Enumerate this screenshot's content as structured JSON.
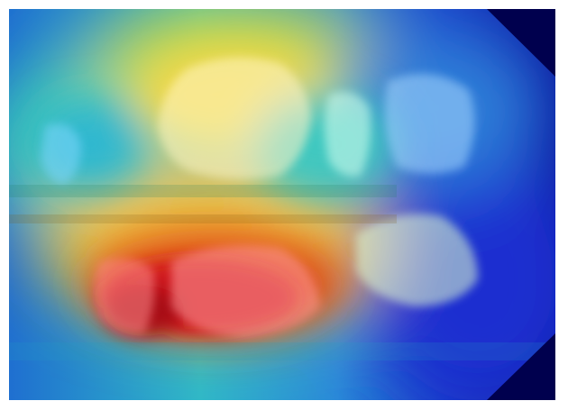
{
  "image": {
    "kind": "dental x-ray with gradcam heatmap overlay",
    "colormap": [
      "#00007f",
      "#0000ff",
      "#00bfff",
      "#40e0d0",
      "#7fff7f",
      "#ffff00",
      "#ff7f00",
      "#ff0000",
      "#8b0000"
    ],
    "background": "#ffffff",
    "corner_fill": "#00004e"
  }
}
